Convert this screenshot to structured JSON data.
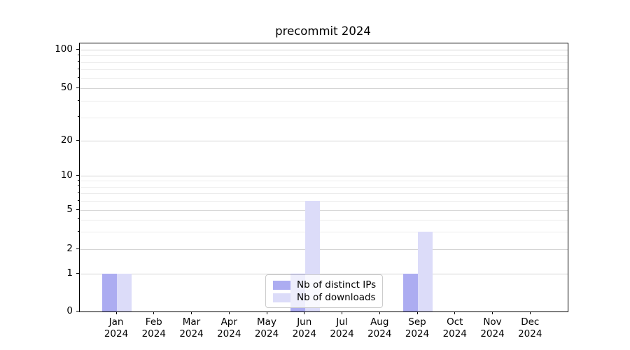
{
  "chart_data": {
    "type": "bar",
    "title": "precommit 2024",
    "categories": [
      "Jan 2024",
      "Feb 2024",
      "Mar 2024",
      "Apr 2024",
      "May 2024",
      "Jun 2024",
      "Jul 2024",
      "Aug 2024",
      "Sep 2024",
      "Oct 2024",
      "Nov 2024",
      "Dec 2024"
    ],
    "series": [
      {
        "name": "Nb of distinct IPs",
        "color": "#acacf1",
        "values": [
          1,
          0,
          0,
          0,
          0,
          1,
          0,
          0,
          1,
          0,
          0,
          0
        ]
      },
      {
        "name": "Nb of downloads",
        "color": "#dcdcf9",
        "values": [
          1,
          0,
          0,
          0,
          0,
          6,
          0,
          0,
          3,
          0,
          0,
          0
        ]
      }
    ],
    "xlabel": "",
    "ylabel": "",
    "yscale": "symlog",
    "ylim": [
      0,
      113
    ],
    "yticks": [
      0,
      1,
      2,
      5,
      10,
      20,
      50,
      100
    ],
    "yticks_minor": [
      3,
      4,
      6,
      7,
      8,
      9,
      30,
      40,
      60,
      70,
      80,
      90
    ],
    "grid": true,
    "legend_position": "lower center",
    "background_color": "#ffffff",
    "grid_major_color": "#d4d4d4",
    "grid_minor_color": "#ececec"
  }
}
